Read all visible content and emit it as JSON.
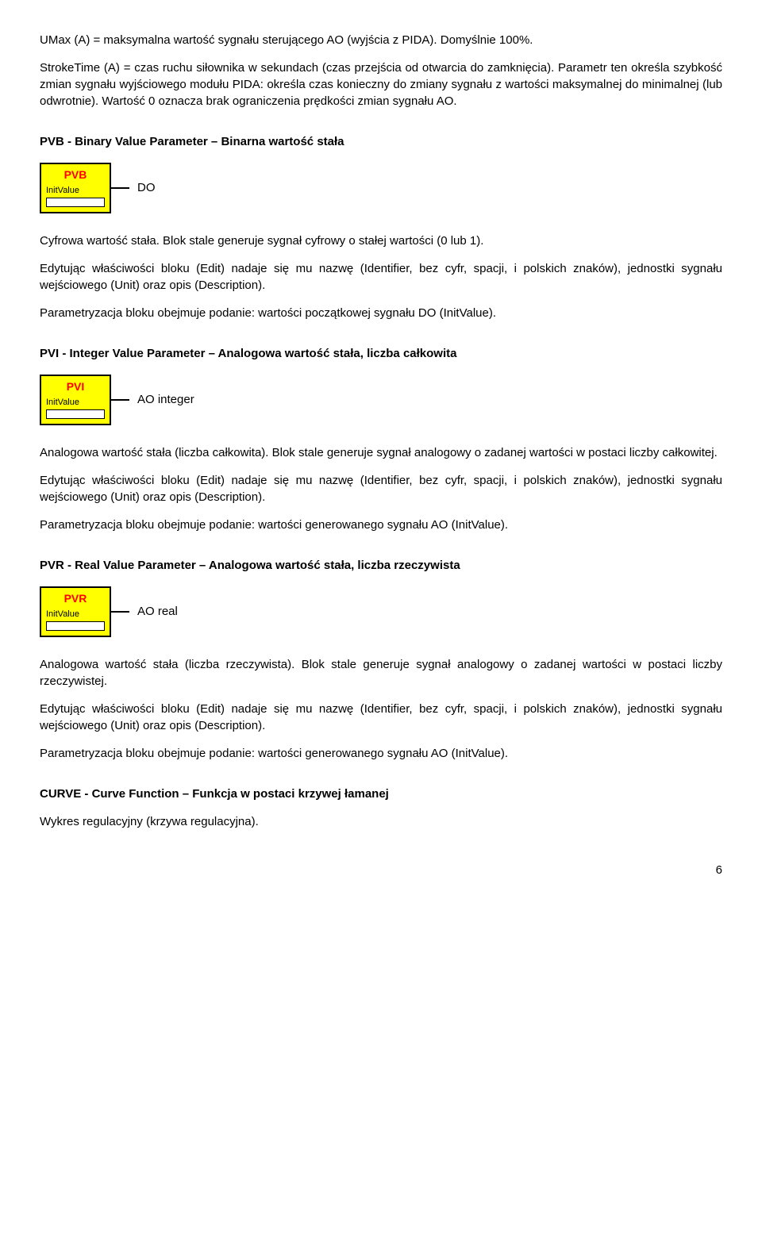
{
  "p1": "UMax (A) = maksymalna wartość sygnału sterującego AO (wyjścia z PIDA). Domyślnie 100%.",
  "p2": "StrokeTime (A) = czas ruchu siłownika w sekundach (czas przejścia od otwarcia do zamknięcia). Parametr ten określa szybkość zmian sygnału wyjściowego modułu PIDA: określa czas konieczny do zmiany sygnału z wartości maksymalnej do minimalnej (lub odwrotnie). Wartość 0 oznacza brak ograniczenia prędkości zmian sygnału AO.",
  "pvb": {
    "heading": "PVB - Binary Value Parameter – Binarna wartość stała",
    "block_title": "PVB",
    "block_param": "InitValue",
    "out": "DO",
    "d1": "Cyfrowa wartość stała. Blok stale generuje sygnał cyfrowy o stałej wartości (0 lub 1).",
    "d2": "Edytując właściwości bloku (Edit) nadaje się mu nazwę (Identifier, bez cyfr, spacji, i polskich znaków), jednostki sygnału wejściowego (Unit) oraz opis (Description).",
    "d3": "Parametryzacja bloku obejmuje podanie: wartości początkowej sygnału DO (InitValue)."
  },
  "pvi": {
    "heading": "PVI - Integer Value Parameter – Analogowa wartość stała, liczba całkowita",
    "block_title": "PVI",
    "block_param": "InitValue",
    "out": "AO integer",
    "d1": "Analogowa wartość stała (liczba całkowita). Blok stale generuje sygnał analogowy o zadanej wartości w postaci liczby całkowitej.",
    "d2": "Edytując właściwości bloku (Edit) nadaje się mu nazwę (Identifier, bez cyfr, spacji, i polskich znaków), jednostki sygnału wejściowego (Unit) oraz opis (Description).",
    "d3": "Parametryzacja bloku obejmuje podanie: wartości generowanego sygnału AO (InitValue)."
  },
  "pvr": {
    "heading": "PVR - Real Value Parameter – Analogowa wartość stała, liczba rzeczywista",
    "block_title": "PVR",
    "block_param": "InitValue",
    "out": "AO real",
    "d1": "Analogowa wartość stała (liczba rzeczywista). Blok stale generuje sygnał analogowy o zadanej wartości w postaci liczby rzeczywistej.",
    "d2": "Edytując właściwości bloku (Edit) nadaje się mu nazwę (Identifier, bez cyfr, spacji, i polskich znaków), jednostki sygnału wejściowego (Unit) oraz opis (Description).",
    "d3": "Parametryzacja bloku obejmuje podanie: wartości generowanego sygnału AO (InitValue)."
  },
  "curve": {
    "heading": "CURVE - Curve Function – Funkcja w postaci krzywej łamanej",
    "d1": "Wykres regulacyjny (krzywa regulacyjna)."
  },
  "page_number": "6",
  "colors": {
    "block_bg": "#ffff00",
    "block_title_color": "#ff0000",
    "border": "#000000",
    "text": "#000000"
  }
}
